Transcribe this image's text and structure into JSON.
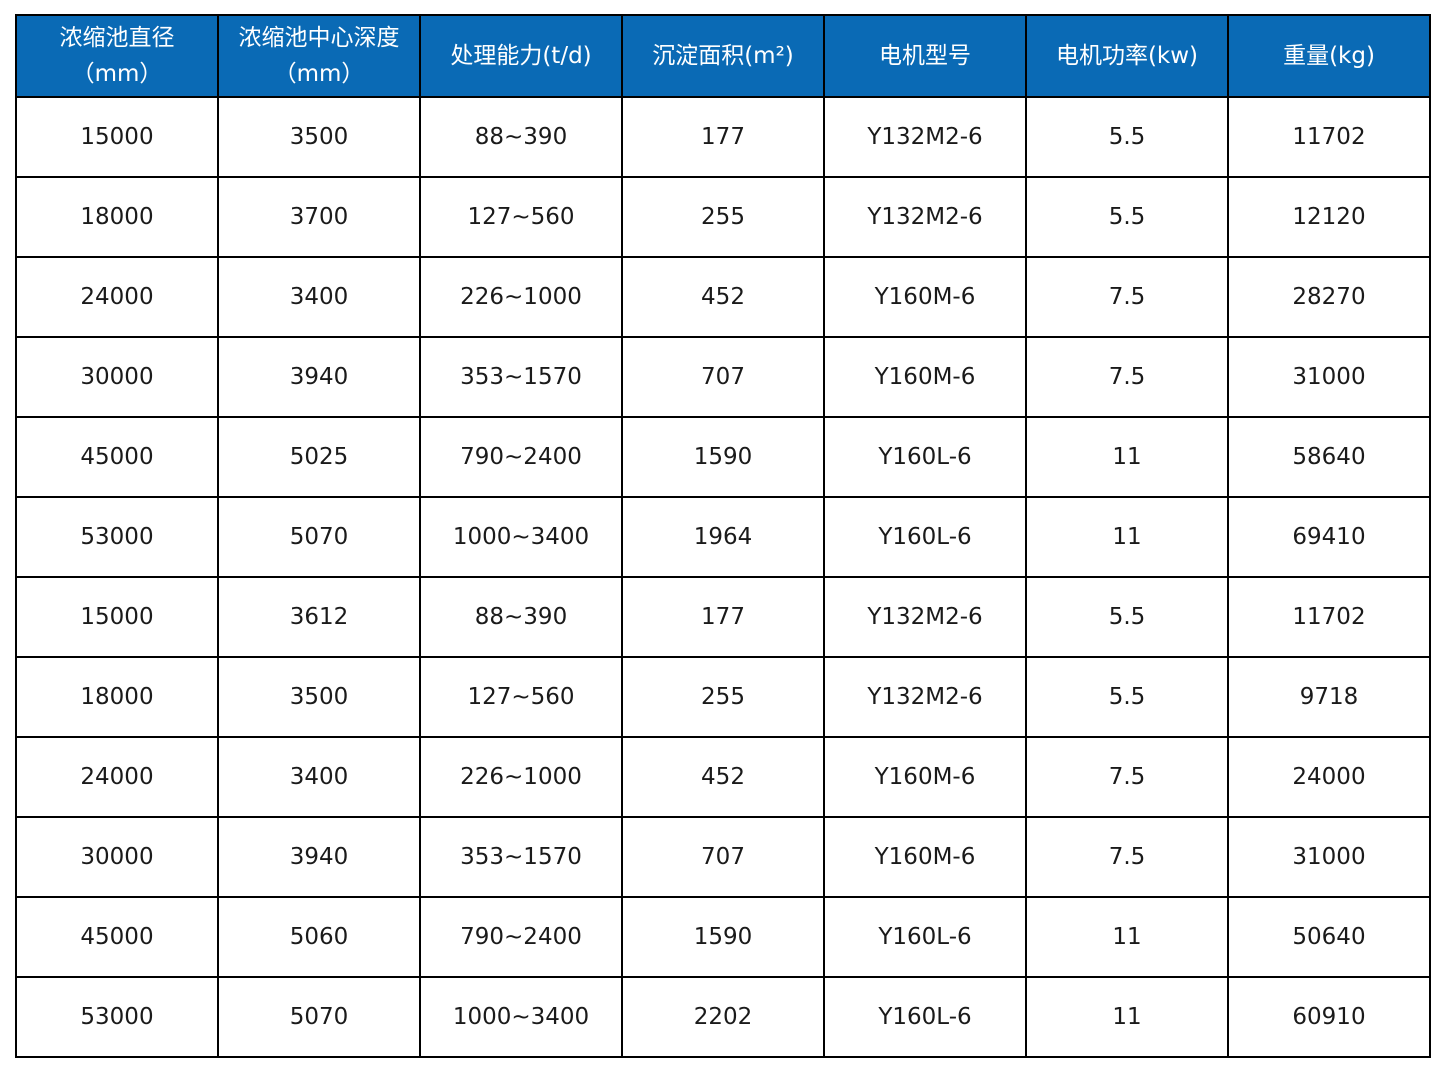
{
  "table": {
    "headers": [
      {
        "lines": [
          "浓缩池直径",
          "（mm）"
        ]
      },
      {
        "lines": [
          "浓缩池中心深度",
          "（mm）"
        ]
      },
      {
        "lines": [
          "处理能力(t/d)"
        ]
      },
      {
        "lines": [
          "沉淀面积(m²)"
        ]
      },
      {
        "lines": [
          "电机型号"
        ]
      },
      {
        "lines": [
          "电机功率(kw)"
        ]
      },
      {
        "lines": [
          "重量(kg)"
        ]
      }
    ],
    "rows": [
      [
        "15000",
        "3500",
        "88~390",
        "177",
        "Y132M2-6",
        "5.5",
        "11702"
      ],
      [
        "18000",
        "3700",
        "127~560",
        "255",
        "Y132M2-6",
        "5.5",
        "12120"
      ],
      [
        "24000",
        "3400",
        "226~1000",
        "452",
        "Y160M-6",
        "7.5",
        "28270"
      ],
      [
        "30000",
        "3940",
        "353~1570",
        "707",
        "Y160M-6",
        "7.5",
        "31000"
      ],
      [
        "45000",
        "5025",
        "790~2400",
        "1590",
        "Y160L-6",
        "11",
        "58640"
      ],
      [
        "53000",
        "5070",
        "1000~3400",
        "1964",
        "Y160L-6",
        "11",
        "69410"
      ],
      [
        "15000",
        "3612",
        "88~390",
        "177",
        "Y132M2-6",
        "5.5",
        "11702"
      ],
      [
        "18000",
        "3500",
        "127~560",
        "255",
        "Y132M2-6",
        "5.5",
        "9718"
      ],
      [
        "24000",
        "3400",
        "226~1000",
        "452",
        "Y160M-6",
        "7.5",
        "24000"
      ],
      [
        "30000",
        "3940",
        "353~1570",
        "707",
        "Y160M-6",
        "7.5",
        "31000"
      ],
      [
        "45000",
        "5060",
        "790~2400",
        "1590",
        "Y160L-6",
        "11",
        "50640"
      ],
      [
        "53000",
        "5070",
        "1000~3400",
        "2202",
        "Y160L-6",
        "11",
        "60910"
      ]
    ]
  },
  "colors": {
    "header_bg": "#0a6ab5",
    "header_text": "#ffffff",
    "border": "#000000"
  }
}
